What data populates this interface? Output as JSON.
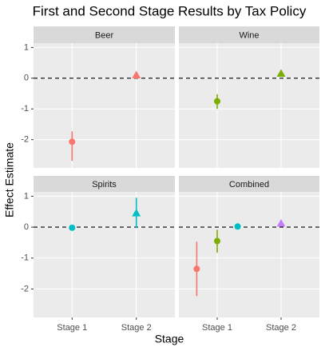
{
  "chart_data": {
    "type": "faceted-pointrange",
    "title": "First and Second Stage Results by Tax Policy",
    "x_label": "Stage",
    "y_label": "Effect Estimate",
    "categories": [
      "Stage 1",
      "Stage 2"
    ],
    "shapes": [
      "circle",
      "triangle"
    ],
    "ylim": [
      -2.92,
      1.14
    ],
    "yticks": [
      -2,
      -1,
      0,
      1
    ],
    "reference_line": 0,
    "grid": true,
    "panels": [
      {
        "title": "Beer",
        "series": [
          {
            "color": "#F8766D",
            "values": [
              -2.07,
              0.1
            ],
            "lower": [
              -2.69,
              null
            ],
            "upper": [
              -1.73,
              null
            ]
          }
        ]
      },
      {
        "title": "Wine",
        "series": [
          {
            "color": "#7CAE00",
            "values": [
              -0.75,
              0.15
            ],
            "lower": [
              -1.0,
              0.05
            ],
            "upper": [
              -0.52,
              0.25
            ]
          }
        ]
      },
      {
        "title": "Spirits",
        "series": [
          {
            "color": "#00BFC4",
            "values": [
              -0.02,
              0.45
            ],
            "lower": [
              null,
              -0.03
            ],
            "upper": [
              null,
              0.95
            ]
          }
        ]
      },
      {
        "title": "Combined",
        "series": [
          {
            "color": "#F8766D",
            "values": [
              -1.35,
              null
            ],
            "lower": [
              -2.23,
              null
            ],
            "upper": [
              -0.47,
              null
            ]
          },
          {
            "color": "#7CAE00",
            "values": [
              -0.45,
              null
            ],
            "lower": [
              -0.83,
              null
            ],
            "upper": [
              -0.08,
              null
            ]
          },
          {
            "color": "#00BFC4",
            "values": [
              0.02,
              null
            ],
            "lower": [
              null,
              null
            ],
            "upper": [
              null,
              null
            ]
          },
          {
            "color": "#C77CFF",
            "values": [
              null,
              0.12
            ],
            "lower": [
              null,
              null
            ],
            "upper": [
              null,
              null
            ]
          }
        ]
      }
    ]
  }
}
